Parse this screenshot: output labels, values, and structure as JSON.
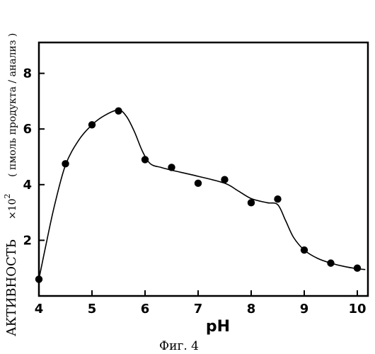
{
  "chart_data": {
    "type": "line",
    "title": "",
    "caption": "Фиг. 4",
    "xlabel": "pH",
    "ylabel": {
      "main": "АКТИВНОСТЬ",
      "multiplier": "×10",
      "exponent": "2",
      "unit": "( пмоль продукта / анализ )"
    },
    "xlim": [
      4,
      10
    ],
    "ylim": [
      0,
      8.8
    ],
    "x_ticks": [
      4,
      5,
      6,
      7,
      8,
      9,
      10
    ],
    "y_ticks": [
      2,
      4,
      6,
      8
    ],
    "grid": false,
    "series": [
      {
        "marker": "filled-circle",
        "x": [
          4.0,
          4.5,
          5.0,
          5.5,
          6.0,
          6.5,
          7.0,
          7.5,
          8.0,
          8.5,
          9.0,
          9.5,
          10.0
        ],
        "y": [
          0.6,
          4.75,
          6.15,
          6.65,
          4.9,
          4.62,
          4.05,
          4.18,
          3.35,
          3.48,
          1.65,
          1.18,
          1.0
        ]
      }
    ],
    "fit_curve": {
      "x": [
        4.0,
        4.15,
        4.3,
        4.5,
        4.75,
        5.0,
        5.25,
        5.5,
        5.65,
        5.8,
        5.95,
        6.1,
        6.3,
        6.5,
        7.0,
        7.5,
        7.75,
        8.0,
        8.3,
        8.5,
        8.65,
        8.8,
        9.0,
        9.25,
        9.5,
        9.75,
        10.0,
        10.15
      ],
      "y": [
        0.6,
        2.0,
        3.3,
        4.7,
        5.6,
        6.15,
        6.5,
        6.68,
        6.45,
        5.9,
        5.2,
        4.75,
        4.62,
        4.52,
        4.3,
        4.05,
        3.78,
        3.5,
        3.35,
        3.28,
        2.7,
        2.1,
        1.65,
        1.35,
        1.18,
        1.06,
        0.98,
        0.95
      ]
    }
  }
}
